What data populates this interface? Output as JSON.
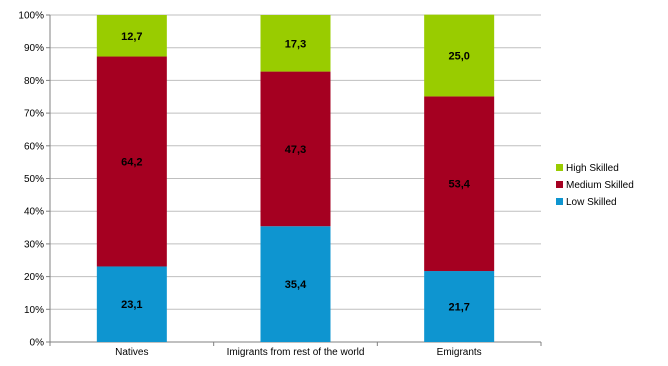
{
  "chart_data": {
    "type": "bar",
    "stacked": true,
    "categories": [
      "Natives",
      "Imigrants from rest of the world",
      "Emigrants"
    ],
    "series": [
      {
        "name": "Low Skilled",
        "values": [
          23.1,
          35.4,
          21.7
        ],
        "labels": [
          "23,1",
          "35,4",
          "21,7"
        ],
        "color": "#0e95d0"
      },
      {
        "name": "Medium Skilled",
        "values": [
          64.2,
          47.3,
          53.4
        ],
        "labels": [
          "64,2",
          "47,3",
          "53,4"
        ],
        "color": "#a50021"
      },
      {
        "name": "High Skilled",
        "values": [
          12.7,
          17.3,
          25.0
        ],
        "labels": [
          "12,7",
          "17,3",
          "25,0"
        ],
        "color": "#99cc00"
      }
    ],
    "y_ticks": [
      "0%",
      "10%",
      "20%",
      "30%",
      "40%",
      "50%",
      "60%",
      "70%",
      "80%",
      "90%",
      "100%"
    ],
    "ylim": [
      0,
      100
    ],
    "grid": true,
    "legend": {
      "position": "right",
      "order": [
        "High Skilled",
        "Medium Skilled",
        "Low Skilled"
      ]
    }
  }
}
